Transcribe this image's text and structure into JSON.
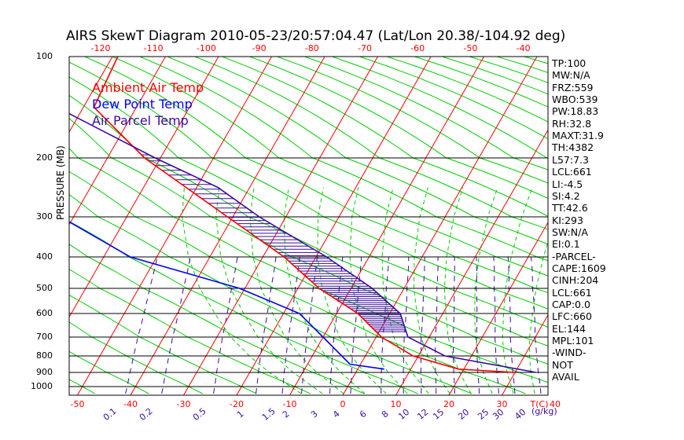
{
  "chart_data": {
    "type": "skewt",
    "title": "AIRS SkewT Diagram 2010-05-23/20:57:04.47 (Lat/Lon 20.38/-104.92 deg)",
    "ylabel": "PRESSURE (MB)",
    "xlabel_bottom_unit": "T(C)",
    "mixing_ratio_unit": "(g/kg)",
    "legend": [
      {
        "name": "Ambient Air Temp",
        "color": "#ff0000"
      },
      {
        "name": "Dew Point Temp",
        "color": "#0000ff"
      },
      {
        "name": "Air Parcel Temp",
        "color": "#3a0aa0"
      }
    ],
    "pressure_ticks": [
      100,
      200,
      300,
      400,
      500,
      600,
      700,
      800,
      900,
      1000
    ],
    "pressure_tick_labels": [
      "100",
      "200",
      "300",
      "400",
      "500",
      "600",
      "700",
      "800",
      "900",
      "1000"
    ],
    "bottom_temp_ticks": [
      -50,
      -40,
      -30,
      -20,
      -10,
      0,
      10,
      20,
      30,
      40
    ],
    "bottom_temp_labels": [
      "-50",
      "-40",
      "-30",
      "-20",
      "-10",
      "0",
      "10",
      "20",
      "30",
      "40"
    ],
    "top_temp_ticks": [
      -120,
      -110,
      -100,
      -90,
      -80,
      -70,
      -60,
      -50,
      -40
    ],
    "top_temp_labels": [
      "-120",
      "-110",
      "-100",
      "-90",
      "-80",
      "-70",
      "-60",
      "-50",
      "-40"
    ],
    "mixing_ratio_labels": [
      "0.1",
      "0.2",
      "0.5",
      "1",
      "1.5",
      "2",
      "3",
      "4",
      "6",
      "8",
      "10",
      "12",
      "15",
      "20",
      "25",
      "30",
      "40"
    ],
    "ambient_temp": [
      {
        "p": 100,
        "t": -79
      },
      {
        "p": 150,
        "t": -78
      },
      {
        "p": 200,
        "t": -63
      },
      {
        "p": 250,
        "t": -52
      },
      {
        "p": 300,
        "t": -41
      },
      {
        "p": 400,
        "t": -26
      },
      {
        "p": 500,
        "t": -16
      },
      {
        "p": 600,
        "t": -6
      },
      {
        "p": 700,
        "t": 1
      },
      {
        "p": 800,
        "t": 9
      },
      {
        "p": 880,
        "t": 19
      },
      {
        "p": 900,
        "t": 30
      }
    ],
    "dew_point": [
      {
        "p": 100,
        "t": -100
      },
      {
        "p": 150,
        "t": -98
      },
      {
        "p": 200,
        "t": -87
      },
      {
        "p": 240,
        "t": -76
      },
      {
        "p": 290,
        "t": -75
      },
      {
        "p": 400,
        "t": -55
      },
      {
        "p": 500,
        "t": -31
      },
      {
        "p": 600,
        "t": -17
      },
      {
        "p": 700,
        "t": -10
      },
      {
        "p": 850,
        "t": -2
      },
      {
        "p": 880,
        "t": 5
      }
    ],
    "parcel_temp": [
      {
        "p": 100,
        "t": -105
      },
      {
        "p": 150,
        "t": -85
      },
      {
        "p": 200,
        "t": -61
      },
      {
        "p": 250,
        "t": -46
      },
      {
        "p": 300,
        "t": -35
      },
      {
        "p": 400,
        "t": -18
      },
      {
        "p": 500,
        "t": -6
      },
      {
        "p": 600,
        "t": 2
      },
      {
        "p": 700,
        "t": 6
      },
      {
        "p": 800,
        "t": 15
      },
      {
        "p": 900,
        "t": 34
      }
    ],
    "wind_barbs": {
      "present": false
    }
  },
  "indices": [
    "TP:100",
    "MW:N/A",
    "FRZ:559",
    "WBO:539",
    "PW:18.83",
    "RH:32.8",
    "MAXT:31.9",
    "TH:4382",
    "L57:7.3",
    "LCL:661",
    "LI:-4.5",
    "SI:4.2",
    "TT:42.6",
    "KI:293",
    "SW:N/A",
    "EI:0.1",
    "-PARCEL-",
    "CAPE:1609",
    "CINH:204",
    "LCL:661",
    "CAP:0.0",
    "LFC:660",
    "EL:144",
    "MPL:101",
    "-WIND-",
    "NOT",
    "AVAIL"
  ]
}
